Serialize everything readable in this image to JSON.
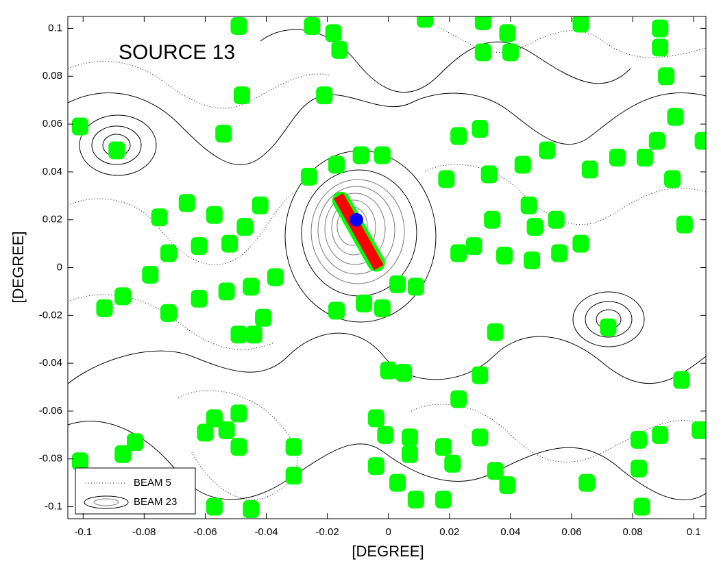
{
  "chart_data": {
    "type": "scatter",
    "annotation": "SOURCE 13",
    "x_label": "[DEGREE]",
    "y_label": "[DEGREE]",
    "xlim": [
      -0.105,
      0.104
    ],
    "ylim": [
      -0.105,
      0.105
    ],
    "xticks": [
      -0.1,
      -0.08,
      -0.06,
      -0.04,
      -0.02,
      0,
      0.02,
      0.04,
      0.06,
      0.08,
      0.1
    ],
    "yticks": [
      -0.1,
      -0.08,
      -0.06,
      -0.04,
      -0.02,
      0,
      0.02,
      0.04,
      0.06,
      0.08,
      0.1
    ],
    "legend": [
      {
        "label": "BEAM 5",
        "style": "dotted"
      },
      {
        "label": "BEAM 23",
        "style": "solid"
      }
    ],
    "legend_position": "lower left",
    "series": [
      {
        "type": "scatter",
        "color": "#00ff00",
        "x": [
          -0.049,
          -0.025,
          -0.018,
          -0.016,
          0.012,
          0.031,
          0.039,
          0.031,
          0.04,
          0.063,
          0.089,
          0.089,
          0.091,
          -0.048,
          -0.021,
          -0.101,
          -0.089,
          -0.054,
          -0.017,
          -0.009,
          -0.002,
          -0.026,
          0.019,
          0.023,
          0.03,
          0.033,
          0.044,
          0.052,
          0.066,
          0.075,
          0.084,
          0.088,
          0.094,
          0.093,
          0.097,
          0.103,
          -0.066,
          -0.075,
          -0.057,
          -0.042,
          -0.047,
          -0.052,
          -0.072,
          -0.078,
          -0.062,
          0.034,
          0.046,
          0.055,
          0.048,
          0.063,
          0.023,
          0.028,
          0.038,
          0.047,
          0.056,
          -0.093,
          -0.087,
          -0.072,
          -0.062,
          -0.053,
          -0.045,
          -0.037,
          -0.017,
          -0.008,
          -0.002,
          0.003,
          0.009,
          -0.041,
          -0.049,
          -0.044,
          0.072,
          0.035,
          0,
          0.005,
          0.03,
          0.023,
          0.096,
          -0.057,
          -0.049,
          -0.053,
          -0.06,
          -0.049,
          -0.083,
          -0.087,
          -0.101,
          -0.031,
          -0.031,
          -0.004,
          -0.001,
          0.007,
          0.007,
          -0.004,
          0.018,
          0.021,
          0.03,
          0.035,
          0.039,
          0.003,
          0.009,
          0.018,
          -0.057,
          -0.045,
          0.065,
          0.082,
          0.089,
          0.082,
          0.083,
          0.102
        ],
        "y": [
          0.101,
          0.101,
          0.098,
          0.091,
          0.104,
          0.103,
          0.098,
          0.09,
          0.09,
          0.102,
          0.1,
          0.092,
          0.08,
          0.072,
          0.072,
          0.059,
          0.049,
          0.056,
          0.043,
          0.047,
          0.047,
          0.038,
          0.037,
          0.055,
          0.058,
          0.039,
          0.043,
          0.049,
          0.041,
          0.046,
          0.046,
          0.053,
          0.063,
          0.037,
          0.018,
          0.053,
          0.027,
          0.021,
          0.022,
          0.026,
          0.017,
          0.01,
          0.006,
          -0.003,
          0.009,
          0.02,
          0.026,
          0.02,
          0.017,
          0.01,
          0.006,
          0.009,
          0.005,
          0.003,
          0.006,
          -0.017,
          -0.012,
          -0.019,
          -0.013,
          -0.01,
          -0.008,
          -0.004,
          -0.018,
          -0.015,
          -0.017,
          -0.007,
          -0.008,
          -0.021,
          -0.028,
          -0.028,
          -0.025,
          -0.027,
          -0.043,
          -0.044,
          -0.045,
          -0.055,
          -0.047,
          -0.063,
          -0.061,
          -0.068,
          -0.069,
          -0.075,
          -0.073,
          -0.078,
          -0.081,
          -0.075,
          -0.087,
          -0.063,
          -0.07,
          -0.071,
          -0.078,
          -0.083,
          -0.075,
          -0.082,
          -0.071,
          -0.085,
          -0.091,
          -0.09,
          -0.097,
          -0.097,
          -0.1,
          -0.101,
          -0.09,
          -0.072,
          -0.07,
          -0.084,
          -0.1,
          -0.068
        ]
      },
      {
        "type": "line",
        "color": "#ff0000",
        "x": [
          -0.0155,
          -0.004
        ],
        "y": [
          0.028,
          0.002
        ]
      },
      {
        "type": "point",
        "color": "#0000ff",
        "x": [
          -0.0105
        ],
        "y": [
          0.02
        ]
      }
    ]
  }
}
